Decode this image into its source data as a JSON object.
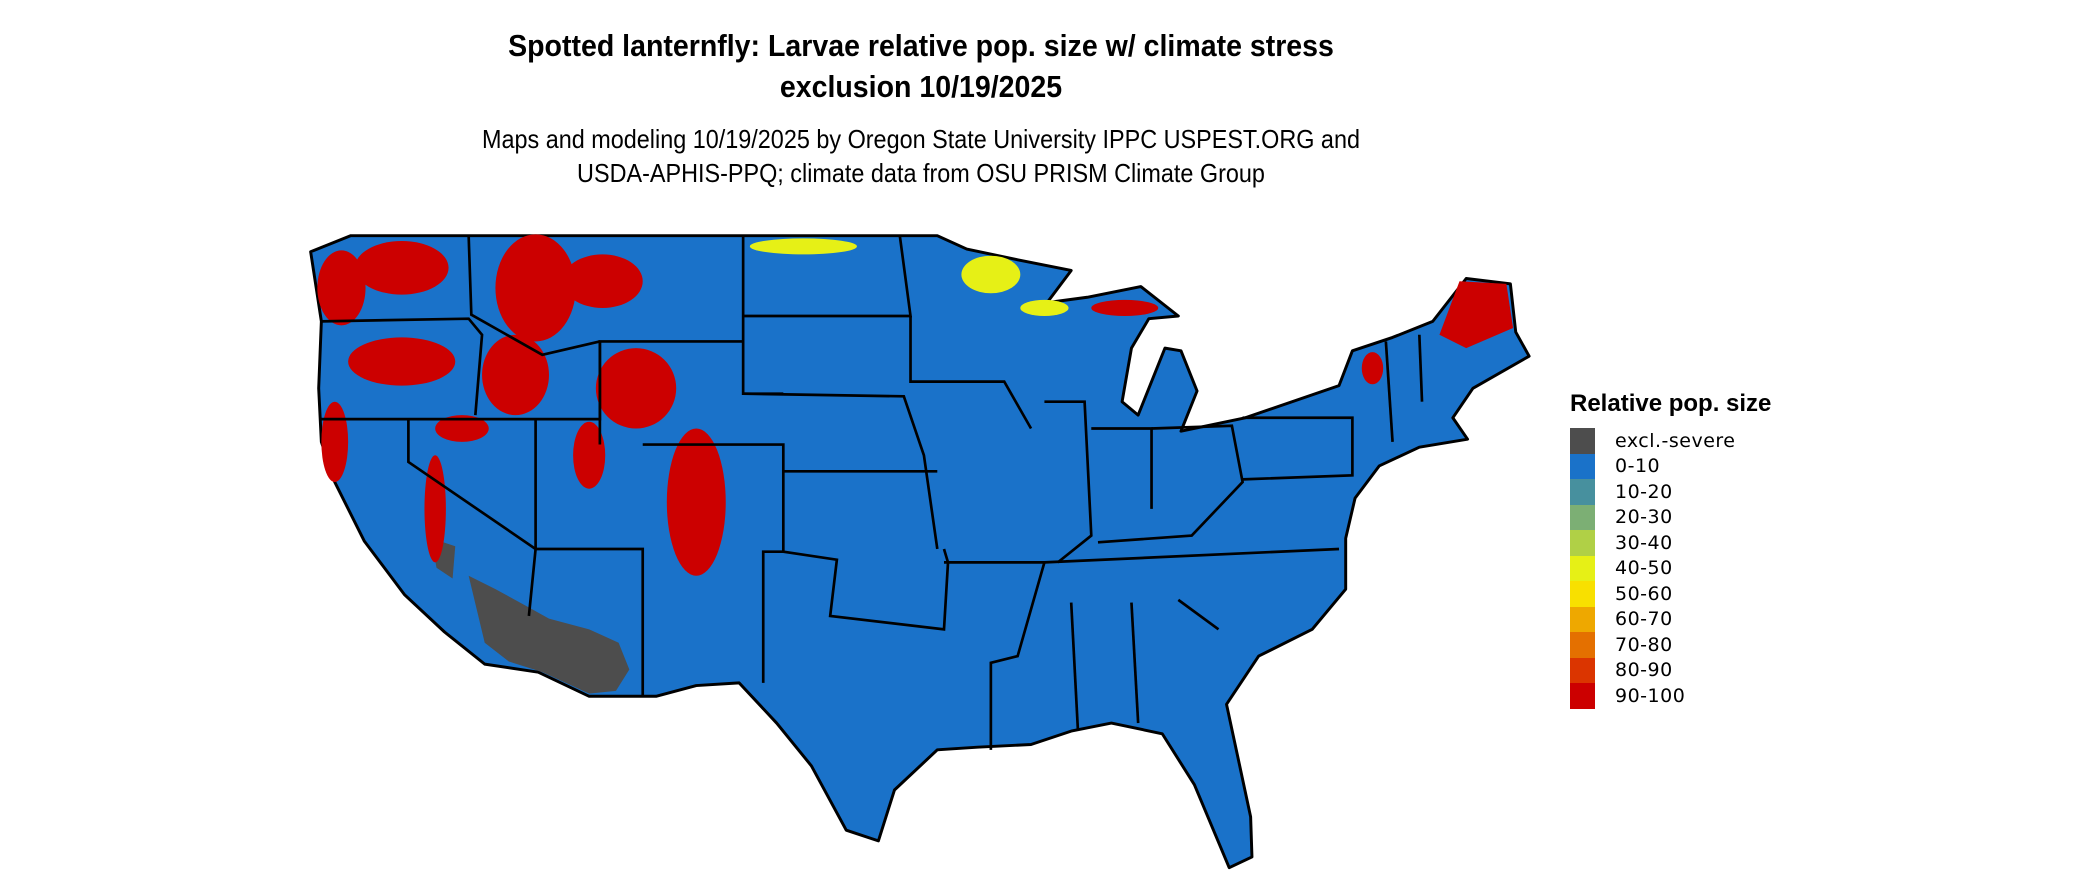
{
  "title": {
    "line1": "Spotted lanternfly: Larvae relative pop. size w/ climate stress",
    "line2": "exclusion 10/19/2025"
  },
  "subtitle": {
    "line1": "Maps and modeling 10/19/2025 by Oregon State University IPPC USPEST.ORG and",
    "line2": "USDA-APHIS-PPQ; climate data from OSU PRISM Climate Group"
  },
  "map": {
    "region": "Contiguous United States",
    "base_color": "#1a72c9",
    "border_color": "#000000"
  },
  "legend": {
    "title": "Relative pop. size",
    "items": [
      {
        "label": "excl.-severe",
        "color": "#4d4d4d"
      },
      {
        "label": "0-10",
        "color": "#1a72c9"
      },
      {
        "label": "10-20",
        "color": "#47909e"
      },
      {
        "label": "20-30",
        "color": "#7caf74"
      },
      {
        "label": "30-40",
        "color": "#b0d046"
      },
      {
        "label": "40-50",
        "color": "#e6f016"
      },
      {
        "label": "50-60",
        "color": "#f8e000"
      },
      {
        "label": "60-70",
        "color": "#eea800"
      },
      {
        "label": "70-80",
        "color": "#e47000"
      },
      {
        "label": "80-90",
        "color": "#db3500"
      },
      {
        "label": "90-100",
        "color": "#cc0000"
      }
    ]
  }
}
